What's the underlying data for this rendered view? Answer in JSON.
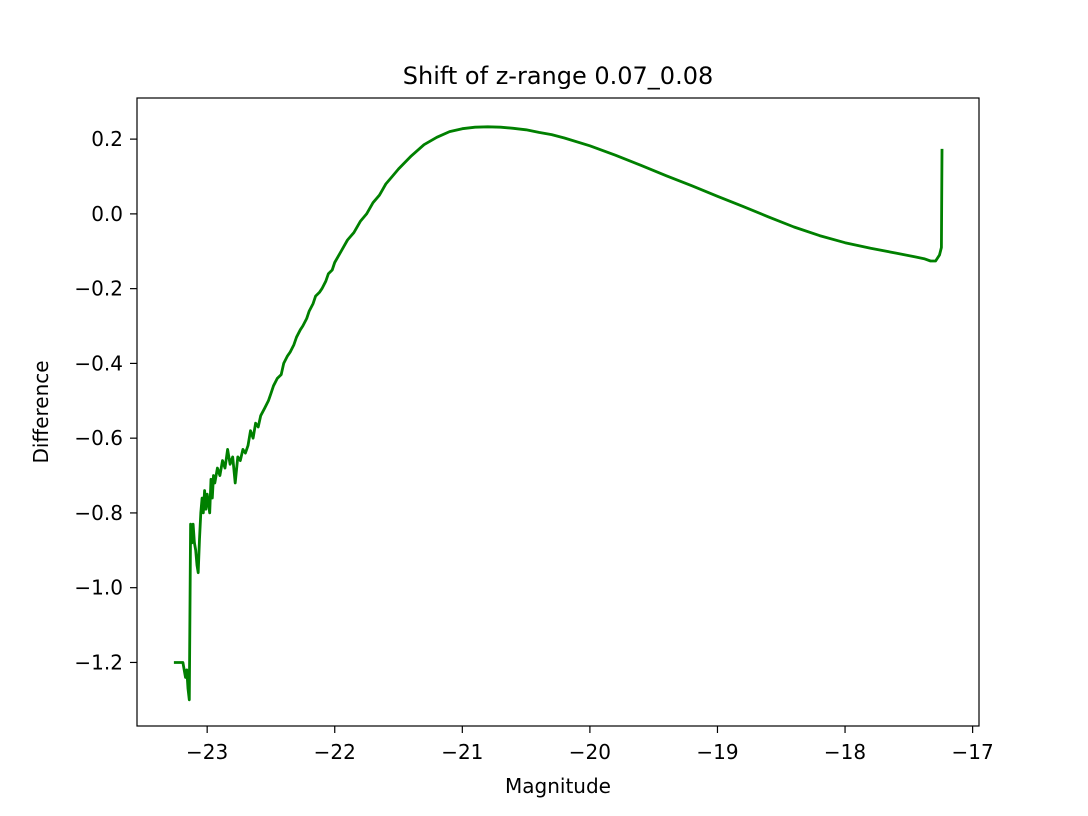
{
  "chart_data": {
    "type": "line",
    "title": "Shift of z-range 0.07_0.08",
    "xlabel": "Magnitude",
    "ylabel": "Difference",
    "xlim": [
      -23.55,
      -16.95
    ],
    "ylim": [
      -1.37,
      0.31
    ],
    "xticks": [
      -23,
      -22,
      -21,
      -20,
      -19,
      -18,
      -17
    ],
    "yticks": [
      -1.2,
      -1.0,
      -0.8,
      -0.6,
      -0.4,
      -0.2,
      0.0,
      0.2
    ],
    "xtick_labels": [
      "−23",
      "−22",
      "−21",
      "−20",
      "−19",
      "−18",
      "−17"
    ],
    "ytick_labels": [
      "−1.2",
      "−1.0",
      "−0.8",
      "−0.6",
      "−0.4",
      "−0.2",
      "0.0",
      "0.2"
    ],
    "grid": false,
    "line_color": "#008000",
    "series": [
      {
        "x": [
          -23.25,
          -23.2,
          -23.19,
          -23.17,
          -23.16,
          -23.15,
          -23.14,
          -23.13,
          -23.12,
          -23.11,
          -23.1,
          -23.09,
          -23.08,
          -23.07,
          -23.06,
          -23.05,
          -23.04,
          -23.03,
          -23.02,
          -23.01,
          -23.0,
          -22.98,
          -22.97,
          -22.96,
          -22.95,
          -22.94,
          -22.92,
          -22.9,
          -22.88,
          -22.86,
          -22.84,
          -22.82,
          -22.8,
          -22.78,
          -22.76,
          -22.74,
          -22.72,
          -22.7,
          -22.68,
          -22.66,
          -22.64,
          -22.62,
          -22.6,
          -22.58,
          -22.55,
          -22.52,
          -22.5,
          -22.48,
          -22.45,
          -22.42,
          -22.4,
          -22.37,
          -22.35,
          -22.32,
          -22.3,
          -22.27,
          -22.25,
          -22.22,
          -22.2,
          -22.17,
          -22.15,
          -22.12,
          -22.1,
          -22.07,
          -22.05,
          -22.02,
          -22.0,
          -21.95,
          -21.9,
          -21.85,
          -21.8,
          -21.75,
          -21.7,
          -21.65,
          -21.6,
          -21.55,
          -21.5,
          -21.4,
          -21.3,
          -21.2,
          -21.1,
          -21.0,
          -20.9,
          -20.8,
          -20.7,
          -20.6,
          -20.5,
          -20.4,
          -20.3,
          -20.2,
          -20.0,
          -19.8,
          -19.6,
          -19.4,
          -19.2,
          -19.0,
          -18.8,
          -18.6,
          -18.4,
          -18.2,
          -18.0,
          -17.8,
          -17.6,
          -17.45,
          -17.38,
          -17.33,
          -17.29,
          -17.26,
          -17.245,
          -17.24
        ],
        "y": [
          -1.2,
          -1.2,
          -1.2,
          -1.24,
          -1.22,
          -1.27,
          -1.3,
          -0.83,
          -0.88,
          -0.83,
          -0.88,
          -0.9,
          -0.94,
          -0.96,
          -0.87,
          -0.8,
          -0.76,
          -0.8,
          -0.74,
          -0.79,
          -0.75,
          -0.8,
          -0.71,
          -0.76,
          -0.7,
          -0.72,
          -0.68,
          -0.7,
          -0.66,
          -0.68,
          -0.63,
          -0.67,
          -0.65,
          -0.72,
          -0.65,
          -0.66,
          -0.63,
          -0.64,
          -0.62,
          -0.58,
          -0.6,
          -0.56,
          -0.57,
          -0.54,
          -0.52,
          -0.5,
          -0.48,
          -0.46,
          -0.44,
          -0.43,
          -0.4,
          -0.38,
          -0.37,
          -0.35,
          -0.33,
          -0.31,
          -0.3,
          -0.28,
          -0.26,
          -0.24,
          -0.22,
          -0.21,
          -0.2,
          -0.18,
          -0.16,
          -0.15,
          -0.13,
          -0.1,
          -0.07,
          -0.05,
          -0.02,
          0.0,
          0.03,
          0.05,
          0.08,
          0.1,
          0.12,
          0.155,
          0.185,
          0.205,
          0.22,
          0.228,
          0.232,
          0.233,
          0.232,
          0.229,
          0.225,
          0.218,
          0.212,
          0.203,
          0.182,
          0.157,
          0.13,
          0.102,
          0.075,
          0.047,
          0.02,
          -0.008,
          -0.035,
          -0.058,
          -0.077,
          -0.092,
          -0.105,
          -0.115,
          -0.12,
          -0.126,
          -0.126,
          -0.11,
          -0.09,
          0.17
        ]
      }
    ]
  }
}
